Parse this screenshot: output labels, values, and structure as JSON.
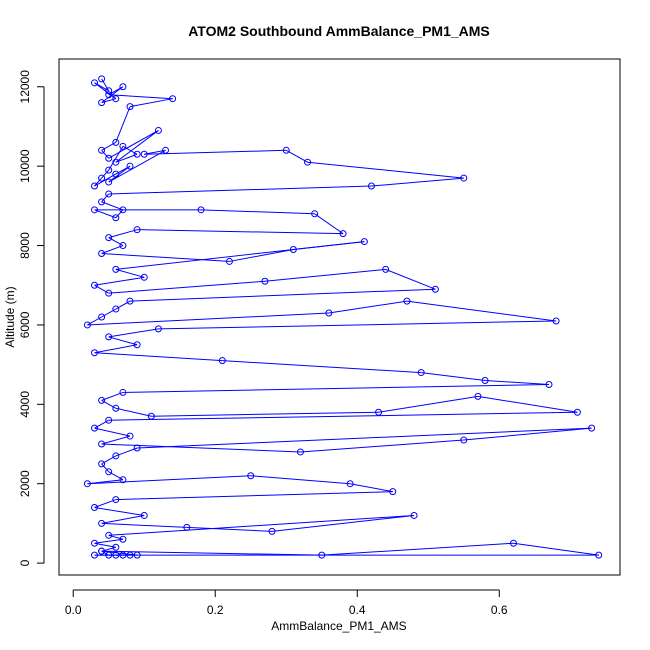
{
  "chart_data": {
    "type": "scatter",
    "title": "ATOM2 Southbound AmmBalance_PM1_AMS",
    "xlabel": "AmmBalance_PM1_AMS",
    "ylabel": "Altitude (m)",
    "xlim": [
      -0.02,
      0.77
    ],
    "ylim": [
      -300,
      12700
    ],
    "x_ticks": [
      0.0,
      0.2,
      0.4,
      0.6
    ],
    "x_tick_labels": [
      "0.0",
      "0.2",
      "0.4",
      "0.6"
    ],
    "y_ticks": [
      0,
      2000,
      4000,
      6000,
      8000,
      10000,
      12000
    ],
    "y_tick_labels": [
      "0",
      "2000",
      "4000",
      "6000",
      "8000",
      "10000",
      "12000"
    ],
    "grid": false,
    "legend": "none",
    "connected": true,
    "color": "#0000ff",
    "series": [
      {
        "x": [
          0.04,
          0.05,
          0.03,
          0.06,
          0.04,
          0.07,
          0.05,
          0.14,
          0.08,
          0.06,
          0.04,
          0.05,
          0.12,
          0.06,
          0.09,
          0.07,
          0.05,
          0.04,
          0.03,
          0.06,
          0.08,
          0.05,
          0.13,
          0.1,
          0.3,
          0.33,
          0.55,
          0.42,
          0.05,
          0.04,
          0.07,
          0.06,
          0.03,
          0.18,
          0.34,
          0.38,
          0.09,
          0.05,
          0.07,
          0.04,
          0.22,
          0.31,
          0.41,
          0.06,
          0.1,
          0.03,
          0.05,
          0.27,
          0.44,
          0.51,
          0.08,
          0.06,
          0.04,
          0.02,
          0.36,
          0.47,
          0.68,
          0.12,
          0.05,
          0.09,
          0.03,
          0.21,
          0.49,
          0.58,
          0.67,
          0.07,
          0.04,
          0.06,
          0.11,
          0.43,
          0.57,
          0.71,
          0.05,
          0.03,
          0.08,
          0.04,
          0.32,
          0.55,
          0.73,
          0.09,
          0.06,
          0.04,
          0.05,
          0.07,
          0.02,
          0.25,
          0.39,
          0.45,
          0.06,
          0.03,
          0.1,
          0.04,
          0.16,
          0.28,
          0.48,
          0.05,
          0.07,
          0.03,
          0.06,
          0.04,
          0.35,
          0.62,
          0.74,
          0.08,
          0.05,
          0.04,
          0.09,
          0.03,
          0.07,
          0.06
        ],
        "y": [
          12200,
          11900,
          12100,
          11700,
          11600,
          12000,
          11800,
          11700,
          11500,
          10600,
          10400,
          10200,
          10900,
          10100,
          10300,
          10500,
          9900,
          9700,
          9500,
          9800,
          10000,
          9600,
          10400,
          10300,
          10400,
          10100,
          9700,
          9500,
          9300,
          9100,
          8900,
          8700,
          8900,
          8900,
          8800,
          8300,
          8400,
          8200,
          8000,
          7800,
          7600,
          7900,
          8100,
          7400,
          7200,
          7000,
          6800,
          7100,
          7400,
          6900,
          6600,
          6400,
          6200,
          6000,
          6300,
          6600,
          6100,
          5900,
          5700,
          5500,
          5300,
          5100,
          4800,
          4600,
          4500,
          4300,
          4100,
          3900,
          3700,
          3800,
          4200,
          3800,
          3600,
          3400,
          3200,
          3000,
          2800,
          3100,
          3400,
          2900,
          2700,
          2500,
          2300,
          2100,
          2000,
          2200,
          2000,
          1800,
          1600,
          1400,
          1200,
          1000,
          900,
          800,
          1200,
          700,
          600,
          500,
          400,
          300,
          200,
          500,
          200,
          200,
          200,
          300,
          200,
          200,
          200,
          200
        ]
      }
    ]
  }
}
